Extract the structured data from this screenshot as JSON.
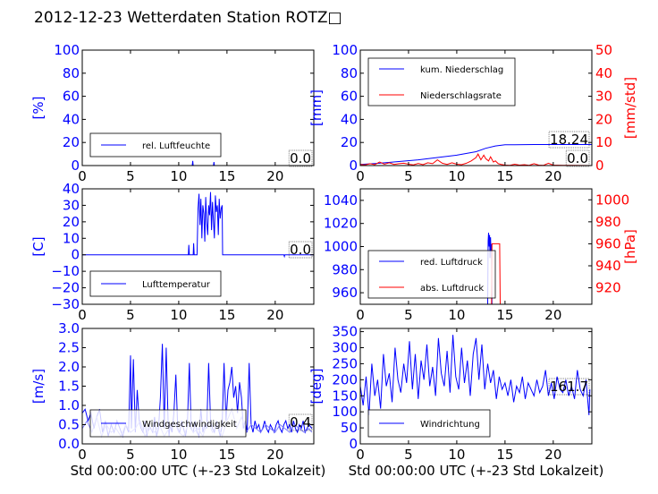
{
  "title": "2012-12-23 Wetterdaten Station ROTZ□",
  "colors": {
    "primary": "#0000ff",
    "secondary": "#ff0000",
    "light": "#8080ff"
  },
  "chart_data": [
    {
      "id": "humidity",
      "type": "line",
      "xlim": [
        0,
        24
      ],
      "xticks": [
        "0",
        "5",
        "10",
        "15",
        "20"
      ],
      "ylim": [
        0,
        100
      ],
      "yticks": [
        "0",
        "20",
        "40",
        "60",
        "80",
        "100"
      ],
      "ylabel": "[%]",
      "legend": [
        "rel. Luftfeuchte"
      ],
      "value_label": "0.0",
      "series": [
        {
          "name": "rel. Luftfeuchte",
          "color": "#0000ff",
          "x": [
            0,
            11.4,
            11.45,
            11.5,
            13.6,
            13.65,
            13.7,
            24
          ],
          "y": [
            0,
            0,
            4,
            0,
            0,
            3,
            0,
            0
          ]
        }
      ]
    },
    {
      "id": "precip",
      "type": "line",
      "xlim": [
        0,
        24
      ],
      "xticks": [
        "0",
        "5",
        "10",
        "15",
        "20"
      ],
      "ylim": [
        0,
        100
      ],
      "yticks": [
        "0",
        "20",
        "40",
        "60",
        "80",
        "100"
      ],
      "ylabel": "[mm]",
      "y2lim": [
        0,
        50
      ],
      "y2ticks": [
        "0",
        "10",
        "20",
        "30",
        "40",
        "50"
      ],
      "y2label": "[mm/std]",
      "legend": [
        "kum. Niederschlag",
        "Niederschlagsrate"
      ],
      "value_label": "18.24",
      "value_label2": "0.0",
      "series": [
        {
          "name": "kum. Niederschlag",
          "color": "#0000ff",
          "x": [
            0,
            2,
            4,
            6,
            8,
            10,
            12,
            13,
            14,
            15,
            16,
            18,
            20,
            22,
            24
          ],
          "y": [
            1,
            2,
            3.5,
            5,
            7,
            9,
            12,
            15,
            17,
            18,
            18.1,
            18.2,
            18.2,
            18.24,
            18.24
          ]
        },
        {
          "name": "Niederschlagsrate",
          "color": "#ff0000",
          "axis": "y2",
          "x": [
            0,
            0.5,
            1,
            1.5,
            2,
            2.5,
            3,
            3.5,
            4,
            4.5,
            5,
            5.5,
            6,
            6.5,
            7,
            7.5,
            8,
            8.5,
            9,
            9.5,
            10,
            10.5,
            11,
            11.5,
            12,
            12.2,
            12.5,
            12.8,
            13,
            13.3,
            13.5,
            13.8,
            14,
            14.3,
            14.6,
            15,
            15.5,
            16,
            16.5,
            17,
            17.5,
            18,
            18.5,
            19,
            19.5,
            20,
            21,
            22,
            24
          ],
          "y": [
            0.5,
            0.3,
            0.8,
            0.4,
            1.5,
            0.6,
            1.2,
            0.5,
            0.8,
            1.0,
            0.6,
            0.3,
            0.9,
            0.4,
            1.2,
            0.8,
            2.5,
            1.0,
            0.5,
            1.2,
            0.6,
            0.4,
            1.0,
            2.0,
            3.5,
            5.0,
            2.5,
            4.5,
            3.0,
            2.0,
            3.8,
            1.5,
            2.0,
            0.8,
            0.5,
            0.2,
            0.1,
            0.6,
            0.2,
            0.4,
            0.1,
            0.8,
            0.2,
            0.1,
            1.0,
            0.2,
            0.1,
            0.1,
            0
          ]
        }
      ]
    },
    {
      "id": "temperature",
      "type": "line",
      "xlim": [
        0,
        24
      ],
      "xticks": [
        "0",
        "5",
        "10",
        "15",
        "20"
      ],
      "ylim": [
        -30,
        40
      ],
      "yticks": [
        "−30",
        "−20",
        "−10",
        "0",
        "10",
        "20",
        "30",
        "40"
      ],
      "ylabel": "[C]",
      "legend": [
        "Lufttemperatur"
      ],
      "value_label": "0.0",
      "series": [
        {
          "name": "Lufttemperatur",
          "color": "#0000ff",
          "x": [
            0,
            11.0,
            11.05,
            11.1,
            11.5,
            11.55,
            11.6,
            11.9,
            12.0,
            12.1,
            12.2,
            12.3,
            12.4,
            12.5,
            12.6,
            12.7,
            12.8,
            12.9,
            13.0,
            13.1,
            13.2,
            13.3,
            13.4,
            13.5,
            13.6,
            13.7,
            13.8,
            13.9,
            14.0,
            14.1,
            14.2,
            14.3,
            14.4,
            14.5,
            14.55,
            14.6,
            20.9,
            20.95,
            21.0,
            24
          ],
          "y": [
            0,
            0,
            6,
            0,
            0,
            7,
            0,
            0,
            28,
            37,
            18,
            34,
            10,
            30,
            25,
            8,
            35,
            20,
            12,
            30,
            24,
            38,
            15,
            32,
            20,
            10,
            36,
            26,
            30,
            12,
            34,
            22,
            28,
            30,
            0,
            0,
            0,
            -1,
            0,
            0
          ]
        }
      ]
    },
    {
      "id": "pressure",
      "type": "line",
      "xlim": [
        0,
        24
      ],
      "xticks": [
        "0",
        "5",
        "10",
        "15",
        "20"
      ],
      "ylim": [
        950,
        1050
      ],
      "yticks": [
        "960",
        "980",
        "1000",
        "1020",
        "1040"
      ],
      "y2lim": [
        905,
        1010
      ],
      "y2ticks": [
        "920",
        "940",
        "960",
        "980",
        "1000"
      ],
      "y2label": "[hPa]",
      "legend": [
        "red. Luftdruck",
        "abs. Luftdruck"
      ],
      "series": [
        {
          "name": "red. Luftdruck",
          "color": "#0000ff",
          "x": [
            13.2,
            13.25,
            13.3,
            13.35,
            13.4,
            13.45,
            13.5,
            13.55,
            13.6,
            13.65
          ],
          "y": [
            950,
            1005,
            1012,
            1000,
            1010,
            990,
            1008,
            995,
            1002,
            950
          ]
        },
        {
          "name": "abs. Luftdruck",
          "color": "#ff0000",
          "axis": "y2",
          "x": [
            13.6,
            13.65,
            13.7,
            14.4,
            14.45,
            14.5
          ],
          "y": [
            905,
            960,
            960,
            960,
            960,
            905
          ]
        }
      ]
    },
    {
      "id": "wind_speed",
      "type": "line",
      "xlim": [
        0,
        24
      ],
      "xticks": [
        "0",
        "5",
        "10",
        "15",
        "20"
      ],
      "ylim": [
        0,
        3.0
      ],
      "yticks": [
        "0.0",
        "0.5",
        "1.0",
        "1.5",
        "2.0",
        "2.5",
        "3.0"
      ],
      "ylabel": "[m/s]",
      "xlabel": "Std 00:00:00 UTC (+-23 Std Lokalzeit)",
      "legend": [
        "Windgeschwindigkeit"
      ],
      "value_label": "0.4",
      "series": [
        {
          "name": "Windgeschwindigkeit",
          "color": "#0000ff",
          "x": [
            0,
            0.3,
            0.6,
            0.9,
            1.2,
            1.5,
            1.8,
            2.1,
            2.4,
            2.7,
            3.0,
            3.3,
            3.6,
            3.9,
            4.2,
            4.5,
            4.8,
            5.0,
            5.1,
            5.3,
            5.5,
            5.7,
            5.9,
            6.1,
            6.3,
            6.5,
            6.7,
            6.9,
            7.1,
            7.3,
            7.5,
            7.7,
            7.9,
            8.1,
            8.3,
            8.5,
            8.7,
            8.9,
            9.0,
            9.1,
            9.3,
            9.5,
            9.7,
            9.9,
            10.1,
            10.3,
            10.5,
            10.7,
            10.9,
            11.1,
            11.3,
            11.5,
            11.7,
            11.9,
            12.1,
            12.3,
            12.5,
            12.7,
            12.9,
            13.1,
            13.3,
            13.5,
            13.7,
            13.9,
            14.1,
            14.3,
            14.5,
            14.7,
            14.9,
            15.1,
            15.3,
            15.5,
            15.7,
            15.9,
            16.1,
            16.3,
            16.5,
            16.7,
            16.9,
            17.1,
            17.3,
            17.5,
            17.7,
            17.9,
            18.1,
            18.3,
            18.5,
            18.7,
            18.9,
            19.1,
            19.3,
            19.5,
            19.7,
            19.9,
            20.1,
            20.3,
            20.5,
            20.7,
            20.9,
            21.1,
            21.3,
            21.5,
            21.7,
            21.9,
            22.1,
            22.3,
            22.5,
            22.7,
            22.9,
            23.1,
            23.3,
            23.5,
            23.8
          ],
          "y": [
            0.8,
            0.9,
            0.6,
            0.8,
            0.4,
            0.7,
            0.9,
            0.3,
            0.6,
            0.2,
            0.5,
            0.3,
            0.6,
            0.4,
            0.2,
            0.5,
            0.3,
            2.3,
            0.4,
            2.2,
            0.3,
            1.4,
            0.6,
            0.4,
            0.3,
            0.6,
            0.2,
            0.5,
            0.4,
            0.3,
            0.7,
            0.2,
            0.4,
            1.2,
            2.6,
            0.4,
            2.5,
            0.6,
            0.2,
            0.5,
            0.3,
            0.8,
            1.8,
            0.4,
            0.3,
            0.6,
            0.4,
            0.2,
            0.5,
            2.1,
            0.4,
            0.3,
            0.6,
            0.3,
            0.2,
            0.9,
            0.3,
            0.5,
            0.4,
            2.1,
            0.6,
            0.4,
            0.3,
            0.6,
            0.4,
            0.2,
            0.5,
            2.1,
            0.6,
            1.4,
            1.6,
            2.0,
            1.2,
            1.5,
            0.8,
            1.6,
            1.2,
            0.4,
            0.6,
            0.3,
            2.1,
            0.5,
            0.3,
            0.6,
            0.4,
            0.5,
            0.3,
            0.4,
            0.6,
            0.4,
            0.3,
            0.5,
            0.4,
            0.3,
            0.5,
            0.6,
            0.4,
            0.3,
            0.5,
            0.6,
            0.4,
            0.5,
            0.3,
            0.6,
            0.4,
            0.3,
            0.5,
            0.4,
            0.6,
            0.3,
            0.4,
            0.5,
            0.4
          ]
        },
        {
          "name": "",
          "color": "#8080ff",
          "x": [
            0,
            0.5,
            1,
            1.5,
            2,
            2.5,
            3,
            3.5,
            4,
            4.5,
            5,
            5.5,
            6,
            6.5,
            7,
            7.5,
            8,
            8.5,
            9,
            9.5,
            10,
            10.5,
            11,
            11.5,
            12,
            12.5,
            13,
            13.5,
            14,
            14.5,
            15,
            15.5,
            16,
            16.5,
            17,
            17.5,
            18,
            18.5,
            19,
            19.5,
            20,
            20.5,
            21,
            21.5,
            22,
            22.5,
            23,
            23.5,
            23.8
          ],
          "y": [
            0.4,
            0.6,
            0.3,
            0.7,
            0.2,
            0.5,
            0.3,
            0.4,
            0.2,
            0.5,
            0.3,
            0.4,
            0.6,
            0.2,
            0.4,
            0.3,
            0.5,
            0.2,
            0.4,
            0.6,
            0.3,
            0.2,
            0.5,
            0.3,
            0.4,
            0.2,
            0.6,
            0.3,
            0.5,
            0.2,
            0.6,
            0.9,
            0.4,
            0.7,
            0.3,
            0.5,
            0.4,
            0.3,
            0.5,
            0.4,
            0.3,
            0.5,
            0.4,
            0.3,
            0.5,
            0.4,
            0.3,
            0.4,
            0.3
          ]
        }
      ]
    },
    {
      "id": "wind_dir",
      "type": "line",
      "xlim": [
        0,
        24
      ],
      "xticks": [
        "0",
        "5",
        "10",
        "15",
        "20"
      ],
      "ylim": [
        0,
        360
      ],
      "yticks": [
        "0",
        "50",
        "100",
        "150",
        "200",
        "250",
        "300",
        "350"
      ],
      "ylabel": "[deg]",
      "xlabel": "Std 00:00:00 UTC (+-23 Std Lokalzeit)",
      "legend": [
        "Windrichtung"
      ],
      "value_label": "161.7",
      "series": [
        {
          "name": "Windrichtung",
          "color": "#0000ff",
          "x": [
            0,
            0.3,
            0.6,
            0.9,
            1.2,
            1.5,
            1.8,
            2.1,
            2.4,
            2.7,
            3.0,
            3.3,
            3.6,
            3.9,
            4.2,
            4.5,
            4.8,
            5.1,
            5.4,
            5.7,
            6.0,
            6.3,
            6.6,
            6.9,
            7.2,
            7.5,
            7.8,
            8.1,
            8.4,
            8.7,
            9.0,
            9.3,
            9.6,
            9.9,
            10.2,
            10.5,
            10.8,
            11.1,
            11.4,
            11.7,
            12.0,
            12.3,
            12.6,
            12.9,
            13.2,
            13.5,
            13.8,
            14.1,
            14.4,
            14.7,
            15.0,
            15.3,
            15.6,
            15.9,
            16.2,
            16.5,
            16.8,
            17.1,
            17.4,
            17.7,
            18.0,
            18.3,
            18.6,
            18.9,
            19.2,
            19.5,
            19.8,
            20.1,
            20.4,
            20.7,
            21.0,
            21.3,
            21.6,
            21.9,
            22.2,
            22.5,
            22.8,
            23.1,
            23.4,
            23.7,
            23.8
          ],
          "y": [
            180,
            120,
            210,
            90,
            250,
            150,
            200,
            110,
            280,
            180,
            220,
            130,
            300,
            200,
            160,
            250,
            190,
            320,
            170,
            280,
            140,
            260,
            200,
            310,
            180,
            240,
            150,
            330,
            220,
            180,
            290,
            160,
            340,
            210,
            170,
            300,
            190,
            260,
            150,
            280,
            330,
            200,
            310,
            170,
            250,
            190,
            230,
            140,
            210,
            170,
            190,
            150,
            200,
            130,
            180,
            160,
            210,
            140,
            190,
            170,
            150,
            200,
            160,
            180,
            230,
            150,
            190,
            140,
            210,
            170,
            160,
            200,
            150,
            180,
            140,
            230,
            170,
            150,
            200,
            90,
            170
          ]
        }
      ]
    }
  ]
}
